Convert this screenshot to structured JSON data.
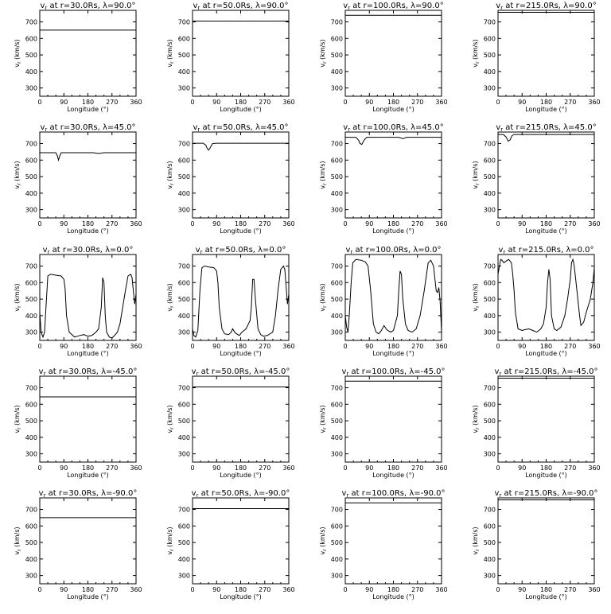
{
  "chart_data": {
    "type": "line",
    "layout": {
      "rows": 5,
      "cols": 4
    },
    "shared_axes": {
      "xlabel": "Longitude (°)",
      "ylabel": "vr (km/s)",
      "xlim": [
        0,
        360
      ],
      "ylim": [
        250,
        770
      ],
      "xticks": [
        0,
        90,
        180,
        270,
        360
      ],
      "yticks": [
        300,
        400,
        500,
        600,
        700
      ],
      "grid": false
    },
    "panels": [
      {
        "title": "vr at r=30.0Rs, λ=90.0°",
        "series": [
          {
            "x": [
              0,
              360
            ],
            "y": [
              650,
              650
            ]
          }
        ]
      },
      {
        "title": "vr at r=50.0Rs, λ=90.0°",
        "series": [
          {
            "x": [
              0,
              360
            ],
            "y": [
              705,
              705
            ]
          }
        ]
      },
      {
        "title": "vr at r=100.0Rs, λ=90.0°",
        "series": [
          {
            "x": [
              0,
              360
            ],
            "y": [
              740,
              740
            ]
          }
        ]
      },
      {
        "title": "vr at r=215.0Rs, λ=90.0°",
        "series": [
          {
            "x": [
              0,
              360
            ],
            "y": [
              758,
              758
            ]
          }
        ]
      },
      {
        "title": "vr at r=30.0Rs, λ=45.0°",
        "series": [
          {
            "x": [
              0,
              60,
              66,
              70,
              74,
              80,
              90,
              200,
              220,
              240,
              360
            ],
            "y": [
              645,
              645,
              625,
              600,
              622,
              645,
              645,
              645,
              640,
              645,
              645
            ]
          }
        ]
      },
      {
        "title": "vr at r=50.0Rs, λ=45.0°",
        "series": [
          {
            "x": [
              0,
              40,
              50,
              55,
              60,
              65,
              75,
              90,
              360
            ],
            "y": [
              702,
              702,
              690,
              670,
              660,
              672,
              700,
              702,
              702
            ]
          }
        ]
      },
      {
        "title": "vr at r=100.0Rs, λ=45.0°",
        "series": [
          {
            "x": [
              0,
              40,
              50,
              55,
              62,
              70,
              80,
              200,
              215,
              230,
              360
            ],
            "y": [
              738,
              738,
              720,
              700,
              695,
              720,
              738,
              738,
              730,
              738,
              738
            ]
          }
        ]
      },
      {
        "title": "vr at r=215.0Rs, λ=45.0°",
        "series": [
          {
            "x": [
              0,
              20,
              30,
              38,
              45,
              52,
              60,
              360
            ],
            "y": [
              755,
              755,
              740,
              715,
              722,
              748,
              755,
              755
            ]
          }
        ]
      },
      {
        "title": "vr at r=30.0Rs, λ=0.0°",
        "series": [
          {
            "x": [
              0,
              5,
              12,
              18,
              25,
              30,
              40,
              60,
              80,
              90,
              95,
              100,
              110,
              130,
              150,
              165,
              180,
              195,
              210,
              220,
              230,
              235,
              240,
              245,
              250,
              260,
              270,
              280,
              290,
              300,
              310,
              320,
              330,
              340,
              345,
              350,
              355,
              360
            ],
            "y": [
              420,
              300,
              270,
              300,
              500,
              640,
              650,
              645,
              640,
              620,
              560,
              400,
              300,
              270,
              280,
              285,
              275,
              280,
              300,
              320,
              450,
              630,
              600,
              400,
              300,
              270,
              265,
              280,
              300,
              350,
              450,
              550,
              640,
              650,
              630,
              550,
              470,
              530
            ]
          }
        ]
      },
      {
        "title": "vr at r=50.0Rs, λ=0.0°",
        "series": [
          {
            "x": [
              0,
              5,
              12,
              20,
              28,
              35,
              45,
              60,
              80,
              90,
              95,
              100,
              110,
              120,
              135,
              145,
              150,
              160,
              175,
              185,
              200,
              215,
              220,
              225,
              230,
              235,
              245,
              255,
              265,
              280,
              300,
              310,
              320,
              330,
              340,
              345,
              350,
              355,
              360
            ],
            "y": [
              320,
              280,
              270,
              310,
              560,
              690,
              700,
              695,
              690,
              670,
              600,
              450,
              320,
              290,
              285,
              300,
              320,
              295,
              280,
              300,
              320,
              370,
              450,
              620,
              620,
              500,
              320,
              285,
              275,
              280,
              300,
              400,
              560,
              680,
              700,
              680,
              580,
              470,
              530
            ]
          }
        ]
      },
      {
        "title": "vr at r=100.0Rs, λ=0.0°",
        "series": [
          {
            "x": [
              0,
              5,
              10,
              15,
              22,
              28,
              40,
              60,
              75,
              85,
              95,
              105,
              115,
              125,
              135,
              145,
              155,
              170,
              180,
              195,
              200,
              205,
              210,
              215,
              225,
              235,
              250,
              265,
              280,
              295,
              310,
              320,
              330,
              340,
              345,
              350,
              355,
              360
            ],
            "y": [
              400,
              330,
              300,
              400,
              600,
              720,
              740,
              735,
              725,
              700,
              550,
              350,
              300,
              290,
              310,
              340,
              315,
              300,
              310,
              400,
              550,
              670,
              650,
              500,
              350,
              310,
              300,
              320,
              400,
              550,
              720,
              735,
              700,
              550,
              540,
              570,
              480,
              300
            ]
          }
        ]
      },
      {
        "title": "vr at r=215.0Rs, λ=0.0°",
        "series": [
          {
            "x": [
              0,
              5,
              10,
              15,
              22,
              30,
              40,
              50,
              55,
              60,
              65,
              75,
              90,
              100,
              115,
              130,
              145,
              160,
              170,
              180,
              185,
              190,
              195,
              200,
              210,
              220,
              235,
              250,
              260,
              270,
              275,
              280,
              285,
              295,
              305,
              310,
              320,
              330,
              345,
              355,
              360
            ],
            "y": [
              650,
              700,
              740,
              735,
              720,
              730,
              740,
              720,
              650,
              550,
              420,
              320,
              310,
              315,
              320,
              310,
              300,
              320,
              350,
              450,
              600,
              680,
              620,
              400,
              320,
              310,
              330,
              400,
              500,
              620,
              720,
              740,
              700,
              550,
              400,
              340,
              360,
              420,
              500,
              600,
              690
            ]
          }
        ]
      },
      {
        "title": "vr at r=30.0Rs, λ=-45.0°",
        "series": [
          {
            "x": [
              0,
              360
            ],
            "y": [
              645,
              645
            ]
          }
        ]
      },
      {
        "title": "vr at r=50.0Rs, λ=-45.0°",
        "series": [
          {
            "x": [
              0,
              360
            ],
            "y": [
              705,
              705
            ]
          }
        ]
      },
      {
        "title": "vr at r=100.0Rs, λ=-45.0°",
        "series": [
          {
            "x": [
              0,
              360
            ],
            "y": [
              740,
              740
            ]
          }
        ]
      },
      {
        "title": "vr at r=215.0Rs, λ=-45.0°",
        "series": [
          {
            "x": [
              0,
              360
            ],
            "y": [
              758,
              758
            ]
          }
        ]
      },
      {
        "title": "vr at r=30.0Rs, λ=-90.0°",
        "series": [
          {
            "x": [
              0,
              360
            ],
            "y": [
              650,
              650
            ]
          }
        ]
      },
      {
        "title": "vr at r=50.0Rs, λ=-90.0°",
        "series": [
          {
            "x": [
              0,
              360
            ],
            "y": [
              705,
              705
            ]
          }
        ]
      },
      {
        "title": "vr at r=100.0Rs, λ=-90.0°",
        "series": [
          {
            "x": [
              0,
              360
            ],
            "y": [
              740,
              740
            ]
          }
        ]
      },
      {
        "title": "vr at r=215.0Rs, λ=-90.0°",
        "series": [
          {
            "x": [
              0,
              360
            ],
            "y": [
              758,
              758
            ]
          }
        ]
      }
    ]
  },
  "colors": {
    "line": "#000000",
    "background": "#ffffff"
  }
}
